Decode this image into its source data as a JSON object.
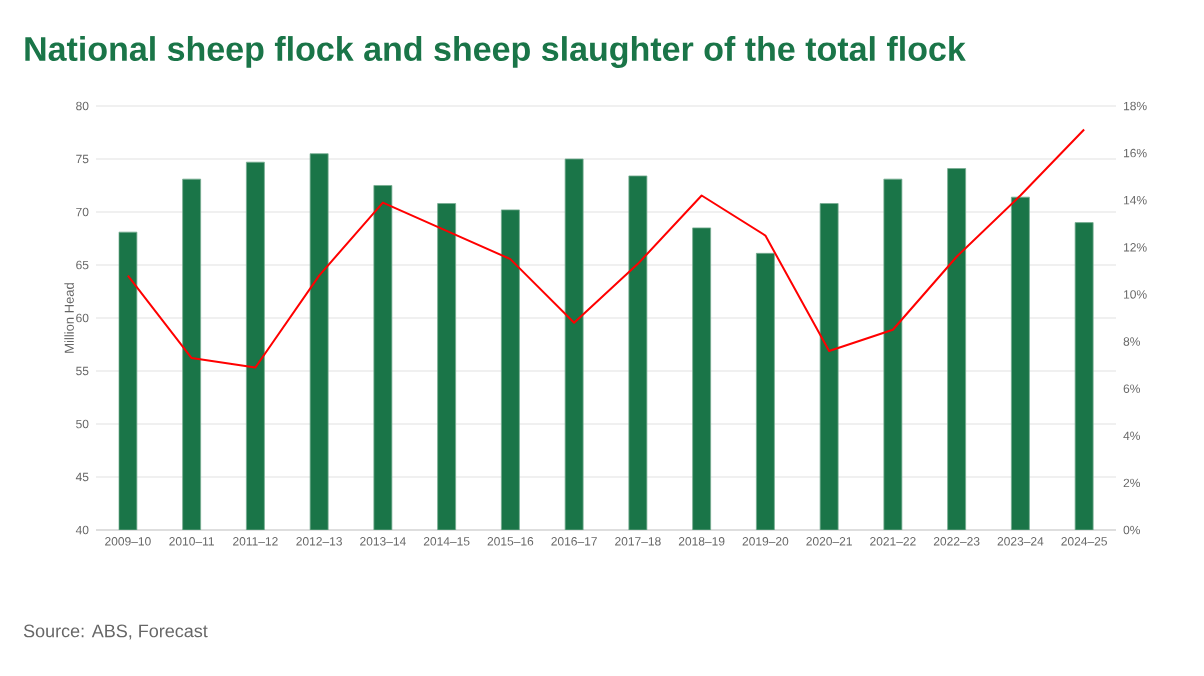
{
  "chart_data": {
    "type": "bar",
    "title": "National sheep flock and sheep slaughter of the total flock",
    "ylabel": "Million Head",
    "categories": [
      "2009–10",
      "2010–11",
      "2011–12",
      "2012–13",
      "2013–14",
      "2014–15",
      "2015–16",
      "2016–17",
      "2017–18",
      "2018–19",
      "2019–20",
      "2020–21",
      "2021–22",
      "2022–23",
      "2023–24",
      "2024–25"
    ],
    "series": [
      {
        "color": "#1a7548",
        "values": [
          68.1,
          73.1,
          74.7,
          75.5,
          72.5,
          70.8,
          70.2,
          75.0,
          73.4,
          68.5,
          66.1,
          70.8,
          73.1,
          74.1,
          71.4,
          69.0
        ]
      },
      {
        "type": "line",
        "axis": "y2",
        "color": "#ff0000",
        "values": [
          10.8,
          7.3,
          6.9,
          10.8,
          13.9,
          12.7,
          11.5,
          8.8,
          11.3,
          14.2,
          12.5,
          7.6,
          8.5,
          11.6,
          14.2,
          17.0
        ]
      }
    ],
    "ylim": [
      40,
      80
    ],
    "yticks": [
      40,
      45,
      50,
      55,
      60,
      65,
      70,
      75,
      80
    ],
    "y2lim": [
      0,
      18
    ],
    "y2ticks": [
      {
        "value": 0,
        "label": "0%"
      },
      {
        "value": 2,
        "label": "2%"
      },
      {
        "value": 4,
        "label": "4%"
      },
      {
        "value": 6,
        "label": "6%"
      },
      {
        "value": 8,
        "label": "8%"
      },
      {
        "value": 10,
        "label": "10%"
      },
      {
        "value": 12,
        "label": "12%"
      },
      {
        "value": 14,
        "label": "14%"
      },
      {
        "value": 16,
        "label": "16%"
      },
      {
        "value": 18,
        "label": "18%"
      }
    ],
    "grid": "y",
    "annotations": [
      "Source: ABS, Forecast"
    ]
  }
}
